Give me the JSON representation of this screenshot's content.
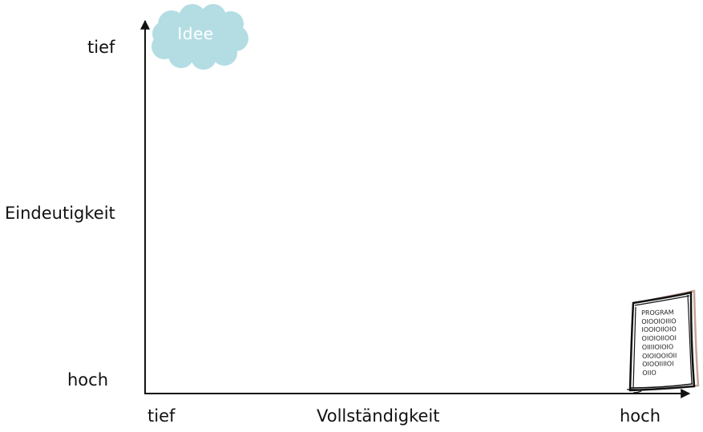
{
  "y_axis": {
    "title": "Eindeutigkeit",
    "top_label": "tief",
    "bottom_label": "hoch"
  },
  "x_axis": {
    "title": "Vollständigkeit",
    "left_label": "tief",
    "right_label": "hoch"
  },
  "cloud": {
    "label": "Idee",
    "color": "#b3dde3"
  },
  "document": {
    "lines": [
      "PROGRAM",
      "OIOOIOIIIO",
      "IOOIOIIOIO",
      "OIOIOIIOOI",
      "OIIIIOIOIO",
      "OIOIOOIOII",
      "OIOOIIIIOI",
      "OIIO"
    ],
    "accent_color": "#c8a49a"
  }
}
